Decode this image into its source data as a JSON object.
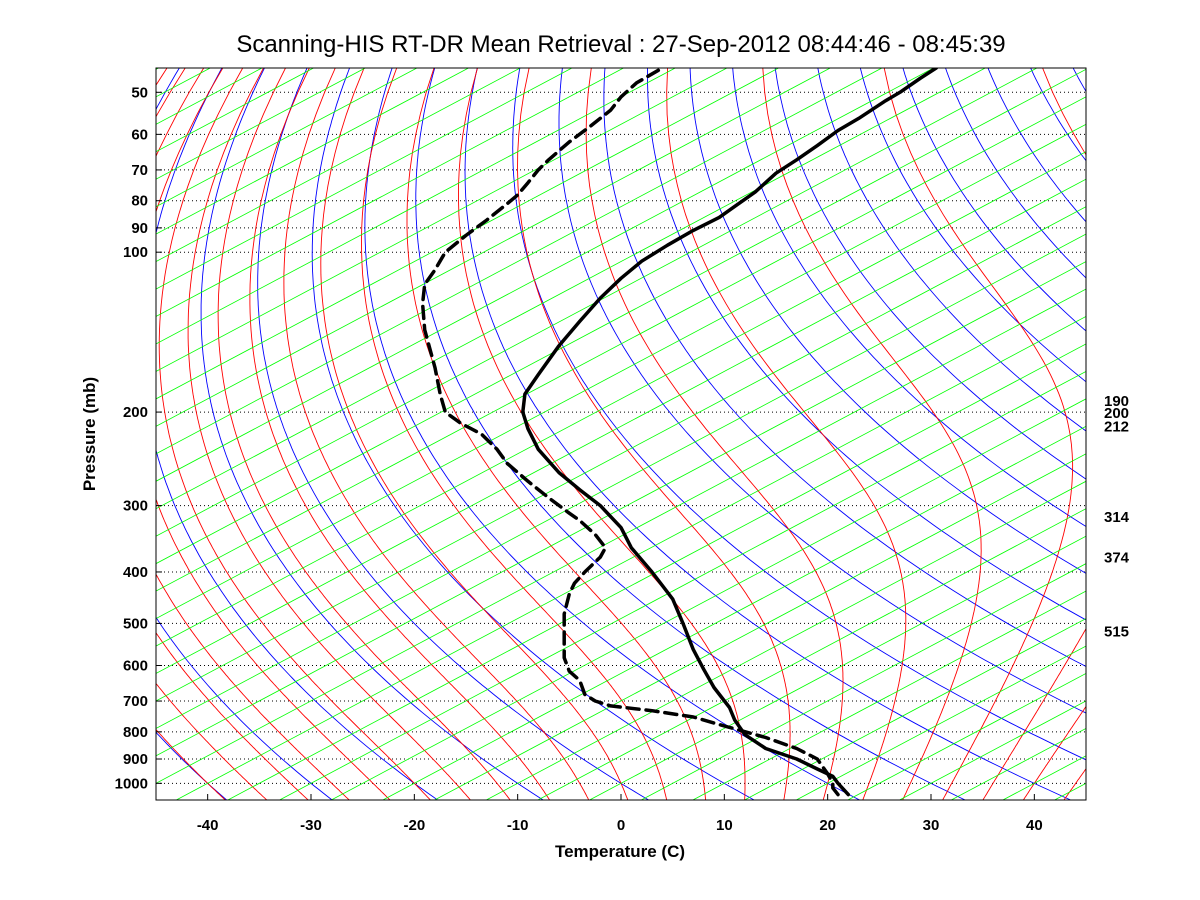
{
  "chart_data": {
    "type": "line",
    "title": "Scanning-HIS RT-DR Mean Retrieval : 27-Sep-2012 08:44:46 - 08:45:39",
    "xlabel": "Temperature (C)",
    "ylabel": "Pressure (mb)",
    "xlim": [
      -45,
      45
    ],
    "ylim": [
      1075,
      45
    ],
    "y_scale": "log",
    "grid": "dotted horizontal at pressure ticks",
    "x_ticks": [
      "-40",
      "-30",
      "-20",
      "-10",
      "0",
      "10",
      "20",
      "30",
      "40"
    ],
    "y_ticks": [
      "50",
      "60",
      "70",
      "80",
      "90",
      "100",
      "200",
      "300",
      "400",
      "500",
      "600",
      "700",
      "800",
      "900",
      "1000"
    ],
    "right_labels": [
      "190",
      "200",
      "212",
      "314",
      "374",
      "515"
    ],
    "right_label_pressures": [
      190,
      200,
      212,
      314,
      374,
      515
    ],
    "colors": {
      "dry_adiabat": "#0000ff",
      "moist_adiabat": "#ff0000",
      "mixing_ratio": "#00ff00",
      "profile": "#000000"
    },
    "series": [
      {
        "style": "solid",
        "x": [
          22.0,
          21.0,
          20.5,
          19.0,
          17.0,
          14.0,
          12.0,
          11.0,
          10.5,
          9.0,
          8.0,
          7.0,
          6.0,
          5.0,
          3.0,
          1.0,
          0.0,
          -2.0,
          -4.0,
          -6.0,
          -8.0,
          -9.0,
          -9.5,
          -9.3,
          -8.0,
          -6.0,
          -4.0,
          -2.0,
          0.0,
          2.0,
          4.5,
          7.0,
          9.5,
          11.0,
          13.0,
          15.0,
          17.0,
          19.0,
          21.0,
          23.0,
          25.5,
          27.0,
          29.0,
          30.5
        ],
        "y": [
          1050,
          1000,
          970,
          940,
          900,
          860,
          810,
          760,
          720,
          660,
          610,
          560,
          500,
          450,
          400,
          360,
          330,
          300,
          280,
          260,
          235,
          215,
          200,
          185,
          170,
          150,
          135,
          122,
          112,
          104,
          97,
          91,
          86,
          82,
          77,
          71,
          67,
          63,
          59,
          56,
          52,
          50,
          47,
          45
        ]
      },
      {
        "style": "dashed",
        "x": [
          21.0,
          20.5,
          20.5,
          20.0,
          19.0,
          17.0,
          14.0,
          10.0,
          7.0,
          3.0,
          -1.0,
          -2.5,
          -3.5,
          -4.0,
          -5.0,
          -5.5,
          -5.5,
          -5.5,
          -5.0,
          -4.5,
          -3.5,
          -2.0,
          -1.5,
          -2.5,
          -4.0,
          -5.0,
          -7.0,
          -9.0,
          -11.0,
          -12.0,
          -13.5,
          -15.5,
          -17.0,
          -17.5,
          -18.0,
          -19.0,
          -19.2,
          -19.0,
          -18.0,
          -17.0,
          -15.0,
          -13.0,
          -11.0,
          -10.0,
          -9.0,
          -8.0,
          -7.0,
          -5.0,
          -3.0,
          -1.0,
          0.0,
          1.5,
          4.0
        ],
        "y": [
          1050,
          1020,
          1000,
          960,
          900,
          860,
          820,
          780,
          750,
          730,
          715,
          700,
          680,
          640,
          615,
          580,
          530,
          480,
          440,
          420,
          400,
          375,
          360,
          340,
          320,
          310,
          290,
          270,
          250,
          235,
          220,
          210,
          200,
          185,
          165,
          140,
          125,
          115,
          108,
          100,
          93,
          87,
          81,
          78,
          74,
          70,
          67,
          62,
          58,
          54,
          51,
          48,
          45
        ]
      }
    ]
  }
}
